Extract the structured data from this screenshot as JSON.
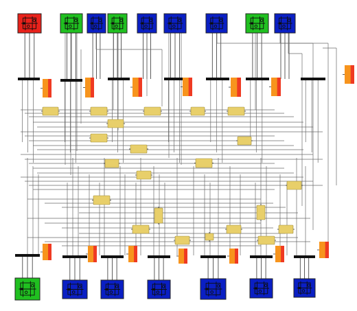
{
  "title": "",
  "colors": {
    "source_red": "#e8221b",
    "source_green": "#20c020",
    "source_blue": "#0a1fc4",
    "gain_fill": "#e8cf6a",
    "bus": "#111111",
    "scope_red": "#ef3a22",
    "scope_orange": "#f7941d",
    "wire": "#6a6a6a"
  },
  "blocks": {
    "top_sources": [
      {
        "id": "top-source-1",
        "color": "red"
      },
      {
        "id": "top-source-2",
        "color": "green"
      },
      {
        "id": "top-source-3",
        "color": "blue"
      },
      {
        "id": "top-source-4",
        "color": "green"
      },
      {
        "id": "top-source-5",
        "color": "blue"
      },
      {
        "id": "top-source-6",
        "color": "blue"
      },
      {
        "id": "top-source-7",
        "color": "blue"
      },
      {
        "id": "top-source-8",
        "color": "green"
      },
      {
        "id": "top-source-9",
        "color": "blue"
      }
    ],
    "bottom_sources": [
      {
        "id": "bottom-source-1",
        "color": "green"
      },
      {
        "id": "bottom-source-2",
        "color": "blue"
      },
      {
        "id": "bottom-source-3",
        "color": "blue"
      },
      {
        "id": "bottom-source-4",
        "color": "blue"
      },
      {
        "id": "bottom-source-5",
        "color": "blue"
      },
      {
        "id": "bottom-source-6",
        "color": "blue"
      },
      {
        "id": "bottom-source-7",
        "color": "blue"
      }
    ],
    "gain_block_count": 22,
    "bus_count": 14,
    "scope_count": 14
  }
}
